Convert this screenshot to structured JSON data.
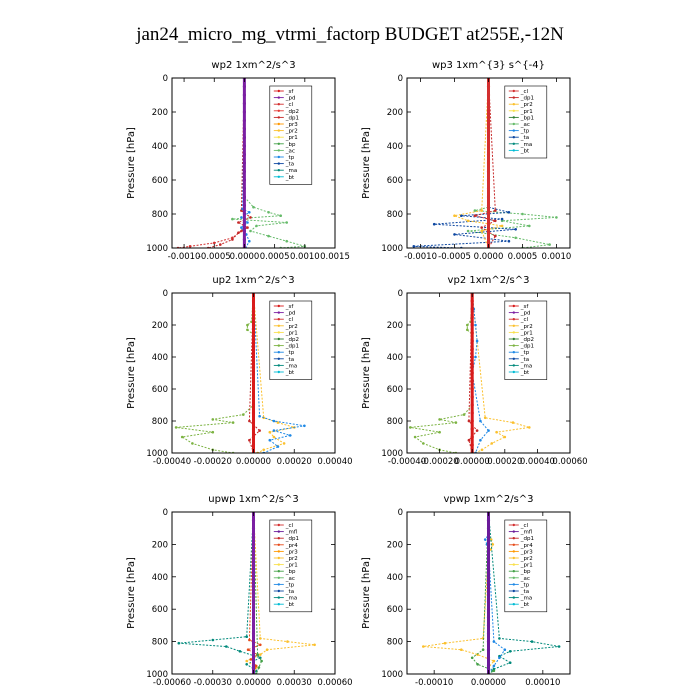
{
  "figure": {
    "title": "jan24_micro_mg_vtrmi_factorp  BUDGET at255E,-12N"
  },
  "colors": {
    "sf": "#d81b1b",
    "pd": "#7b1fa2",
    "cl": "#d32f2f",
    "dp2": "#e53935",
    "dp1": "#c62828",
    "pr3": "#ff9800",
    "pr2": "#fbc02d",
    "pr1": "#f9e04b",
    "bp": "#43a047",
    "ac": "#66bb6a",
    "tp": "#1e88e5",
    "ta": "#0d47a1",
    "ma": "#00897b",
    "bt": "#00bcd4",
    "mfl": "#6a1b9a",
    "pr4": "#e64a19",
    "bp1": "#2e7d32",
    "green_pr1": "#7cb342",
    "dp2g": "#2e7d32"
  },
  "chart_data": [
    {
      "type": "line",
      "title": "wp2   1xm^2/s^3",
      "ylabel": "Pressure [hPa]",
      "ylim": [
        1000,
        0
      ],
      "xlim": [
        -0.0012,
        0.0015
      ],
      "xticks": [
        -0.001,
        -0.0005,
        0.0,
        0.0005,
        0.001,
        0.0015
      ],
      "xtick_labels": [
        "-0.0010",
        "-0.0005",
        "0.0000",
        "0.0005",
        "0.0010",
        "0.0015"
      ],
      "yticks": [
        0,
        200,
        400,
        600,
        800,
        1000
      ],
      "legend": [
        "_sf",
        "_pd",
        "_cl",
        "_dp2",
        "_dp1",
        "_pr3",
        "_pr2",
        "_pr1",
        "_bp",
        "_ac",
        "_tp",
        "_ta",
        "_ma",
        "_bt"
      ],
      "legend_keys": [
        "sf",
        "pd",
        "cl",
        "dp2",
        "dp1",
        "pr3",
        "pr2",
        "pr1",
        "bp",
        "ac",
        "tp",
        "ta",
        "ma",
        "bt"
      ],
      "series": [
        {
          "key": "ac",
          "p": [
            0,
            700,
            760,
            790,
            810,
            830,
            850,
            870,
            900,
            930,
            960,
            990,
            1000
          ],
          "v": [
            0,
            0,
            0.00015,
            0.0004,
            0.0006,
            -0.0002,
            0.0007,
            0.0002,
            0.0001,
            0.0004,
            0.0007,
            0.001,
            0.0006
          ]
        },
        {
          "key": "cl",
          "p": [
            0,
            850,
            900,
            940,
            970,
            990,
            1000
          ],
          "v": [
            0,
            0,
            -5e-05,
            -0.0002,
            -0.0005,
            -0.0009,
            -0.0011
          ]
        },
        {
          "key": "dp1",
          "p": [
            0,
            780,
            820,
            850,
            880,
            910,
            950,
            980,
            1000
          ],
          "v": [
            0,
            -5e-05,
            0.0001,
            -0.0001,
            5e-05,
            -0.0001,
            -0.0002,
            -0.0004,
            -0.0006
          ]
        },
        {
          "key": "tp",
          "p": [
            0,
            770,
            790,
            820,
            850,
            880,
            920,
            960,
            1000
          ],
          "v": [
            0,
            -3e-05,
            8e-05,
            -5e-05,
            5e-05,
            -5e-05,
            3e-05,
            8e-05,
            2e-05
          ]
        },
        {
          "key": "pd",
          "p": [
            0,
            200,
            400,
            600,
            800,
            1000
          ],
          "v": [
            0,
            0,
            0,
            0,
            0,
            0
          ],
          "thick": true
        }
      ]
    },
    {
      "type": "line",
      "title": "wp3   1xm^{3} s^{-4}",
      "ylabel": "Pressure [hPa]",
      "ylim": [
        1000,
        0
      ],
      "xlim": [
        -0.0012,
        0.0012
      ],
      "xticks": [
        -0.001,
        -0.0005,
        0.0,
        0.0005,
        0.001
      ],
      "xtick_labels": [
        "-0.0010",
        "-0.0005",
        "0.0000",
        "0.0005",
        "0.0010"
      ],
      "yticks": [
        0,
        200,
        400,
        600,
        800,
        1000
      ],
      "legend": [
        "_cl",
        "_dp1",
        "_pr2",
        "_pr1",
        "_bp1",
        "_ac",
        "_tp",
        "_ta",
        "_ma",
        "_bt"
      ],
      "legend_keys": [
        "cl",
        "dp1",
        "pr2",
        "pr1",
        "bp1",
        "ac",
        "tp",
        "ta",
        "ma",
        "bt"
      ],
      "series": [
        {
          "key": "ac",
          "p": [
            0,
            760,
            780,
            800,
            820,
            840,
            870,
            900,
            940,
            980,
            1000
          ],
          "v": [
            0,
            0,
            -0.0002,
            0.0005,
            0.001,
            0.0002,
            0.0006,
            -0.0003,
            0.0004,
            0.0009,
            0.0005
          ]
        },
        {
          "key": "ta",
          "p": [
            0,
            760,
            790,
            810,
            830,
            860,
            890,
            920,
            960,
            990,
            1000
          ],
          "v": [
            0,
            0,
            0.0003,
            -0.0004,
            0.0002,
            -0.0008,
            0.0004,
            -0.0005,
            0.0003,
            -0.0011,
            -0.0004
          ]
        },
        {
          "key": "pr2",
          "p": [
            0,
            780,
            810,
            840,
            870,
            900,
            1000
          ],
          "v": [
            0,
            -0.0001,
            -0.0005,
            -0.0003,
            0.0002,
            -0.0001,
            0
          ]
        },
        {
          "key": "dp1",
          "p": [
            0,
            780,
            810,
            840,
            880,
            930,
            1000
          ],
          "v": [
            0,
            0.0001,
            -0.0002,
            0.0001,
            -0.0001,
            0.0001,
            0
          ]
        },
        {
          "key": "cl",
          "p": [
            0,
            200,
            400,
            600,
            800,
            1000
          ],
          "v": [
            0,
            0,
            0,
            0,
            0,
            0
          ],
          "thick": true
        }
      ]
    },
    {
      "type": "line",
      "title": "up2   1xm^2/s^3",
      "ylabel": "Pressure [hPa]",
      "ylim": [
        1000,
        0
      ],
      "xlim": [
        -0.0004,
        0.0004
      ],
      "xticks": [
        -0.0004,
        -0.0002,
        0.0,
        0.0002,
        0.0004
      ],
      "xtick_labels": [
        "-0.00040",
        "-0.00020",
        "0.00000",
        "0.00020",
        "0.00040"
      ],
      "yticks": [
        0,
        200,
        400,
        600,
        800,
        1000
      ],
      "legend": [
        "_sf",
        "_pd",
        "_cl",
        "_pr2",
        "_pr1",
        "_dp2",
        "_dp1",
        "_tp",
        "_ta",
        "_ma",
        "_bt"
      ],
      "legend_keys": [
        "sf",
        "pd",
        "cl",
        "pr2",
        "pr1",
        "dp2g",
        "green_pr1",
        "tp",
        "ta",
        "ma",
        "bt"
      ],
      "series": [
        {
          "key": "green_pr1",
          "p": [
            0,
            180,
            200,
            230,
            260,
            700,
            760,
            790,
            810,
            840,
            870,
            900,
            940,
            980,
            1000
          ],
          "v": [
            0,
            -1e-05,
            -3e-05,
            -3e-05,
            0,
            0,
            -5e-05,
            -0.0002,
            -0.0001,
            -0.00038,
            -0.0002,
            -0.00035,
            -0.0003,
            -0.0002,
            -0.0001
          ]
        },
        {
          "key": "pr2",
          "p": [
            0,
            780,
            810,
            840,
            870,
            900,
            940,
            980,
            1000
          ],
          "v": [
            0,
            5e-05,
            0.00012,
            0.0002,
            8e-05,
            0.0001,
            0.00015,
            5e-05,
            2e-05
          ]
        },
        {
          "key": "tp",
          "p": [
            0,
            770,
            800,
            830,
            860,
            890,
            920,
            960,
            1000
          ],
          "v": [
            0,
            3e-05,
            0.0001,
            0.00025,
            0.0001,
            0.00018,
            8e-05,
            0.00012,
            5e-05
          ]
        },
        {
          "key": "dp1",
          "p": [
            0,
            800,
            860,
            920,
            1000
          ],
          "v": [
            0,
            -2e-05,
            3e-05,
            -2e-05,
            0
          ]
        },
        {
          "key": "sf",
          "p": [
            0,
            200,
            400,
            600,
            800,
            1000
          ],
          "v": [
            0,
            0,
            0,
            0,
            0,
            0
          ],
          "thick": true
        }
      ]
    },
    {
      "type": "line",
      "title": "vp2   1xm^2/s^3",
      "ylabel": "Pressure [hPa]",
      "ylim": [
        1000,
        0
      ],
      "xlim": [
        -0.0004,
        0.0006
      ],
      "xticks": [
        -0.0004,
        -0.0002,
        0.0,
        0.0002,
        0.0004,
        0.0006
      ],
      "xtick_labels": [
        "-0.00040",
        "-0.00020",
        "0.00000",
        "0.00020",
        "0.00040",
        "0.00060"
      ],
      "yticks": [
        0,
        200,
        400,
        600,
        800,
        1000
      ],
      "legend": [
        "_sf",
        "_pd",
        "_cl",
        "_pr2",
        "_pr1",
        "_dp2",
        "_dp1",
        "_tp",
        "_ta",
        "_ma",
        "_bt"
      ],
      "legend_keys": [
        "sf",
        "pd",
        "cl",
        "pr2",
        "pr1",
        "dp2g",
        "green_pr1",
        "tp",
        "ta",
        "ma",
        "bt"
      ],
      "series": [
        {
          "key": "green_pr1",
          "p": [
            0,
            180,
            200,
            230,
            260,
            700,
            760,
            790,
            810,
            840,
            870,
            900,
            940,
            980,
            1000
          ],
          "v": [
            0,
            -1e-05,
            -3e-05,
            -3e-05,
            0,
            0,
            -5e-05,
            -0.0002,
            -0.0001,
            -0.00038,
            -0.0002,
            -0.00035,
            -0.0003,
            -0.0002,
            -0.0001
          ]
        },
        {
          "key": "pr2",
          "p": [
            0,
            780,
            810,
            840,
            870,
            900,
            940,
            980,
            1000
          ],
          "v": [
            0,
            8e-05,
            0.00025,
            0.00035,
            0.00015,
            0.0002,
            0.00012,
            6e-05,
            2e-05
          ]
        },
        {
          "key": "tp",
          "p": [
            0,
            100,
            200,
            300,
            400,
            500,
            800,
            860,
            920,
            1000
          ],
          "v": [
            0,
            1e-05,
            2e-05,
            3e-05,
            2e-05,
            0,
            5e-05,
            0.0001,
            5e-05,
            2e-05
          ]
        },
        {
          "key": "dp1",
          "p": [
            0,
            800,
            860,
            920,
            1000
          ],
          "v": [
            0,
            -2e-05,
            3e-05,
            -2e-05,
            0
          ]
        },
        {
          "key": "sf",
          "p": [
            0,
            200,
            400,
            600,
            800,
            1000
          ],
          "v": [
            0,
            0,
            0,
            0,
            0,
            0
          ],
          "thick": true
        }
      ]
    },
    {
      "type": "line",
      "title": "upwp   1xm^2/s^3",
      "ylabel": "Pressure [hPa]",
      "ylim": [
        1000,
        0
      ],
      "xlim": [
        -0.0006,
        0.0006
      ],
      "xticks": [
        -0.0006,
        -0.0003,
        0.0,
        0.0003,
        0.0006
      ],
      "xtick_labels": [
        "-0.00060",
        "-0.00030",
        "0.00000",
        "0.00030",
        "0.00060"
      ],
      "yticks": [
        0,
        200,
        400,
        600,
        800,
        1000
      ],
      "legend": [
        "_cl",
        "_mfl",
        "_dp1",
        "_pr4",
        "_pr3",
        "_pr2",
        "_pr1",
        "_bp",
        "_ac",
        "_tp",
        "_ta",
        "_ma",
        "_bt"
      ],
      "legend_keys": [
        "cl",
        "mfl",
        "dp1",
        "pr4",
        "pr3",
        "pr2",
        "pr1",
        "bp",
        "ac",
        "tp",
        "ta",
        "ma",
        "bt"
      ],
      "series": [
        {
          "key": "ma",
          "p": [
            0,
            770,
            790,
            810,
            830,
            860,
            900,
            940,
            980,
            1000
          ],
          "v": [
            0,
            -5e-05,
            -0.0003,
            -0.00055,
            -0.0002,
            -0.0001,
            5e-05,
            -5e-05,
            2e-05,
            0
          ]
        },
        {
          "key": "pr2",
          "p": [
            0,
            780,
            800,
            820,
            850,
            880,
            920,
            960,
            1000
          ],
          "v": [
            0,
            5e-05,
            0.00025,
            0.00045,
            0.0001,
            5e-05,
            -5e-05,
            2e-05,
            0
          ]
        },
        {
          "key": "pr4",
          "p": [
            0,
            790,
            820,
            850,
            880,
            910,
            950,
            1000
          ],
          "v": [
            0,
            -3e-05,
            5e-05,
            -4e-05,
            3e-05,
            -2e-05,
            2e-05,
            0
          ]
        },
        {
          "key": "bp",
          "p": [
            0,
            880,
            920,
            960,
            1000
          ],
          "v": [
            0,
            3e-05,
            6e-05,
            4e-05,
            2e-05
          ]
        },
        {
          "key": "pd",
          "p": [
            0,
            200,
            400,
            600,
            800,
            1000
          ],
          "v": [
            0,
            0,
            0,
            0,
            0,
            0
          ],
          "thick": true
        }
      ]
    },
    {
      "type": "line",
      "title": "vpwp   1xm^2/s^3",
      "ylabel": "Pressure [hPa]",
      "ylim": [
        1000,
        0
      ],
      "xlim": [
        -0.00015,
        0.00015
      ],
      "xticks": [
        -0.0001,
        0.0,
        0.0001
      ],
      "xtick_labels": [
        "-0.00010",
        "0.00000",
        "0.00010"
      ],
      "yticks": [
        0,
        200,
        400,
        600,
        800,
        1000
      ],
      "legend": [
        "_cl",
        "_mfl",
        "_dp1",
        "_pr4",
        "_pr3",
        "_pr2",
        "_pr1",
        "_bp",
        "_ac",
        "_tp",
        "_ta",
        "_ma",
        "_bt"
      ],
      "legend_keys": [
        "cl",
        "mfl",
        "dp1",
        "pr4",
        "pr3",
        "pr2",
        "pr1",
        "bp",
        "ac",
        "tp",
        "ta",
        "ma",
        "bt"
      ],
      "series": [
        {
          "key": "pr2",
          "p": [
            0,
            140,
            170,
            200,
            230,
            260,
            780,
            810,
            830,
            850,
            880,
            920,
            960,
            1000
          ],
          "v": [
            0,
            0,
            5e-06,
            8e-06,
            4e-06,
            0,
            -1e-05,
            -8e-05,
            -0.00012,
            -5e-05,
            -2e-05,
            1e-05,
            0,
            0
          ]
        },
        {
          "key": "ma",
          "p": [
            0,
            780,
            800,
            830,
            860,
            890,
            930,
            970,
            1000
          ],
          "v": [
            0,
            2e-05,
            8e-05,
            0.00013,
            4e-05,
            2e-05,
            4e-05,
            1e-05,
            0
          ]
        },
        {
          "key": "tp",
          "p": [
            0,
            140,
            170,
            200,
            230,
            800,
            850,
            900,
            950,
            1000
          ],
          "v": [
            0,
            0,
            -6e-06,
            -3e-06,
            0,
            1e-05,
            3e-05,
            2e-05,
            1e-05,
            0
          ]
        },
        {
          "key": "bp",
          "p": [
            0,
            850,
            900,
            940,
            980,
            1000
          ],
          "v": [
            0,
            -1e-05,
            -3e-05,
            -2e-05,
            1e-05,
            0
          ]
        },
        {
          "key": "mfl",
          "p": [
            0,
            200,
            400,
            600,
            800,
            1000
          ],
          "v": [
            0,
            0,
            0,
            0,
            0,
            0
          ],
          "thick": true
        }
      ]
    }
  ]
}
